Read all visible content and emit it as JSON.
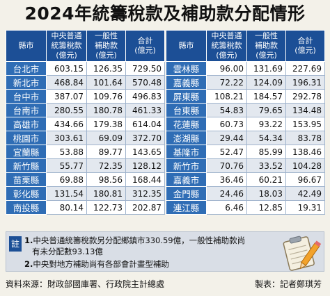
{
  "title": "2024年統籌稅款及補助款分配情形",
  "headers": {
    "city": "縣市",
    "a": [
      "中央普通",
      "統籌稅款",
      "(億元)"
    ],
    "b": [
      "一般性",
      "補助款",
      "(億元)"
    ],
    "c": [
      "合計",
      "(億元)"
    ]
  },
  "left_rows": [
    {
      "city": "台北市",
      "a": "603.15",
      "b": "126.35",
      "c": "729.50"
    },
    {
      "city": "新北市",
      "a": "468.84",
      "b": "101.64",
      "c": "570.48"
    },
    {
      "city": "台中市",
      "a": "387.07",
      "b": "109.76",
      "c": "496.83"
    },
    {
      "city": "台南市",
      "a": "280.55",
      "b": "180.78",
      "c": "461.33"
    },
    {
      "city": "高雄市",
      "a": "434.66",
      "b": "179.38",
      "c": "614.04"
    },
    {
      "city": "桃園市",
      "a": "303.61",
      "b": "69.09",
      "c": "372.70"
    },
    {
      "city": "宜蘭縣",
      "a": "53.88",
      "b": "89.77",
      "c": "143.65"
    },
    {
      "city": "新竹縣",
      "a": "55.77",
      "b": "72.35",
      "c": "128.12"
    },
    {
      "city": "苗栗縣",
      "a": "69.88",
      "b": "98.56",
      "c": "168.44"
    },
    {
      "city": "彰化縣",
      "a": "131.54",
      "b": "180.81",
      "c": "312.35"
    },
    {
      "city": "南投縣",
      "a": "80.14",
      "b": "122.73",
      "c": "202.87"
    }
  ],
  "right_rows": [
    {
      "city": "雲林縣",
      "a": "96.00",
      "b": "131.69",
      "c": "227.69"
    },
    {
      "city": "嘉義縣",
      "a": "72.22",
      "b": "124.09",
      "c": "196.31"
    },
    {
      "city": "屏東縣",
      "a": "108.21",
      "b": "184.57",
      "c": "292.78"
    },
    {
      "city": "台東縣",
      "a": "54.83",
      "b": "79.65",
      "c": "134.48"
    },
    {
      "city": "花蓮縣",
      "a": "60.73",
      "b": "93.22",
      "c": "153.95"
    },
    {
      "city": "澎湖縣",
      "a": "29.44",
      "b": "54.34",
      "c": "83.78"
    },
    {
      "city": "基隆市",
      "a": "52.47",
      "b": "85.99",
      "c": "138.46"
    },
    {
      "city": "新竹市",
      "a": "70.76",
      "b": "33.52",
      "c": "104.28"
    },
    {
      "city": "嘉義市",
      "a": "36.46",
      "b": "60.21",
      "c": "96.67"
    },
    {
      "city": "金門縣",
      "a": "24.46",
      "b": "18.03",
      "c": "42.49"
    },
    {
      "city": "連江縣",
      "a": "6.46",
      "b": "12.85",
      "c": "19.31"
    }
  ],
  "notes": {
    "tag": "註",
    "n1": "1.",
    "line1": "中央普通統籌稅款另分配鄉鎮市330.59億，一般性補助款尚",
    "line1b": "有未分配數93.13億",
    "n2": "2.",
    "line2": "中央對地方補助尚有各部會計畫型補助"
  },
  "footer": {
    "source": "資料來源：財政部國庫署、行政院主計總處",
    "maker": "製表：記者鄭琪芳"
  },
  "icon": "clipboard-pencil-icon"
}
